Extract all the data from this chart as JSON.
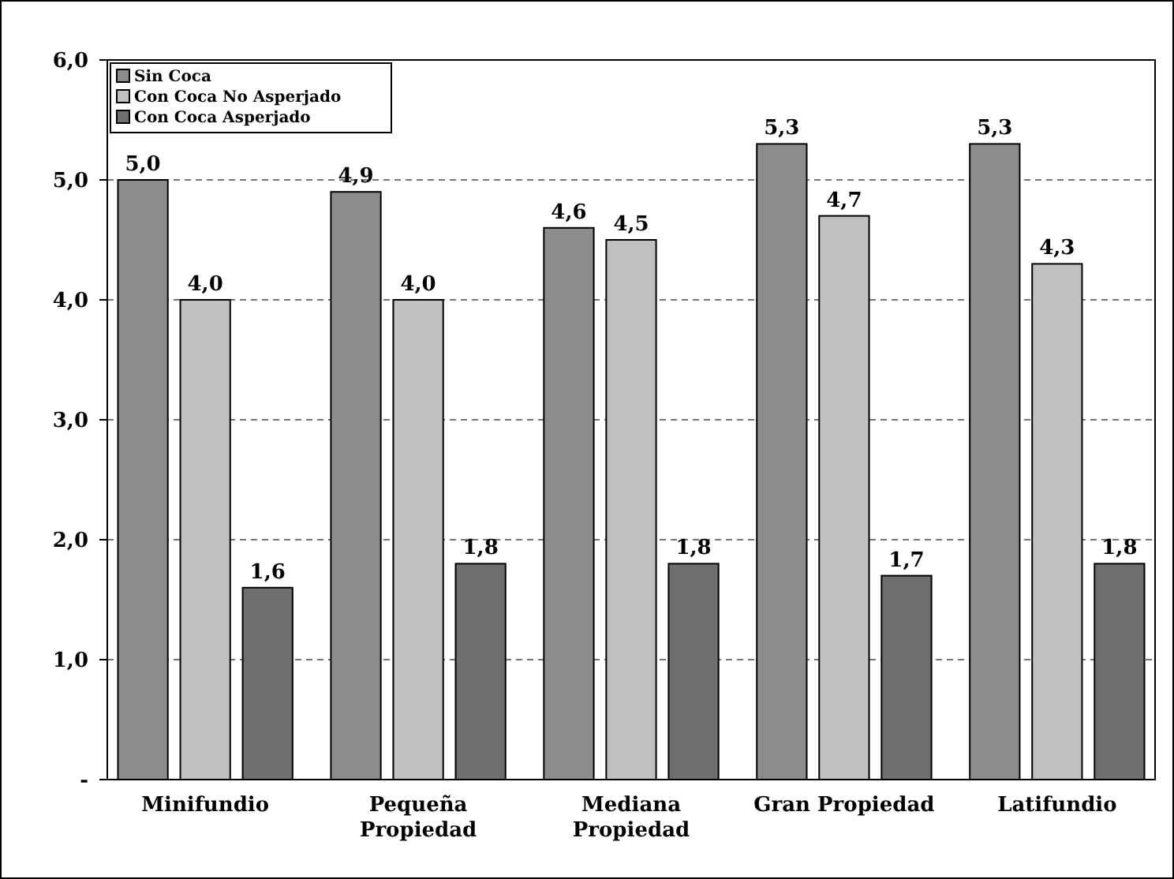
{
  "chart_data": {
    "type": "bar",
    "categories": [
      "Minifundio",
      "Pequeña Propiedad",
      "Mediana Propiedad",
      "Gran Propiedad",
      "Latifundio"
    ],
    "series": [
      {
        "name": "Sin Coca",
        "color": "#8c8c8e",
        "values": [
          5.0,
          4.9,
          4.6,
          5.3,
          5.3
        ],
        "value_labels": [
          "5,0",
          "4,9",
          "4,6",
          "5,3",
          "5,3"
        ]
      },
      {
        "name": "Con Coca No Asperjado",
        "color": "#c0c0c2",
        "values": [
          4.0,
          4.0,
          4.5,
          4.7,
          4.3
        ],
        "value_labels": [
          "4,0",
          "4,0",
          "4,5",
          "4,7",
          "4,3"
        ]
      },
      {
        "name": "Con Coca Asperjado",
        "color": "#6e6e70",
        "values": [
          1.6,
          1.8,
          1.8,
          1.7,
          1.8
        ],
        "value_labels": [
          "1,6",
          "1,8",
          "1,8",
          "1,7",
          "1,8"
        ]
      }
    ],
    "ylim": [
      0,
      6
    ],
    "yticks": [
      {
        "value": 0,
        "label": "-"
      },
      {
        "value": 1,
        "label": "1,0"
      },
      {
        "value": 2,
        "label": "2,0"
      },
      {
        "value": 3,
        "label": "3,0"
      },
      {
        "value": 4,
        "label": "4,0"
      },
      {
        "value": 5,
        "label": "5,0"
      },
      {
        "value": 6,
        "label": "6,0"
      }
    ],
    "grid": "y",
    "legend": "top left"
  }
}
